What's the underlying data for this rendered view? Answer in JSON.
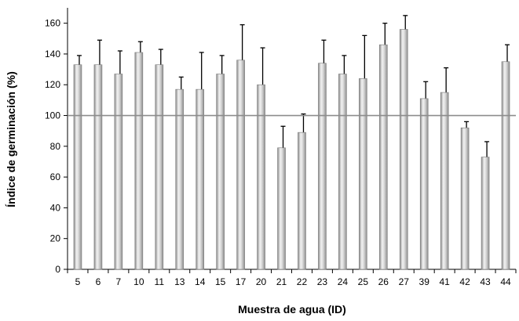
{
  "chart_data": {
    "type": "bar",
    "title": "",
    "xlabel": "Muestra de agua (ID)",
    "ylabel": "Índice de germinación (%)",
    "ylim": [
      0,
      170
    ],
    "yticks": [
      0,
      20,
      40,
      60,
      80,
      100,
      120,
      140,
      160
    ],
    "grid": false,
    "legend": "none",
    "bar_color": "#bdbdbd",
    "reference_line": {
      "value": 100,
      "color": "#8c8c8c"
    },
    "categories": [
      "5",
      "6",
      "7",
      "10",
      "11",
      "13",
      "14",
      "15",
      "17",
      "20",
      "21",
      "22",
      "23",
      "24",
      "25",
      "26",
      "27",
      "39",
      "41",
      "42",
      "43",
      "44"
    ],
    "series": [
      {
        "values": [
          133,
          133,
          127,
          141,
          133,
          117,
          117,
          127,
          136,
          120,
          79,
          89,
          134,
          127,
          124,
          146,
          156,
          111,
          115,
          92,
          73,
          135
        ],
        "error": [
          6,
          16,
          15,
          7,
          10,
          8,
          24,
          12,
          23,
          24,
          14,
          12,
          15,
          12,
          28,
          14,
          9,
          11,
          16,
          4,
          10,
          11
        ]
      }
    ]
  }
}
